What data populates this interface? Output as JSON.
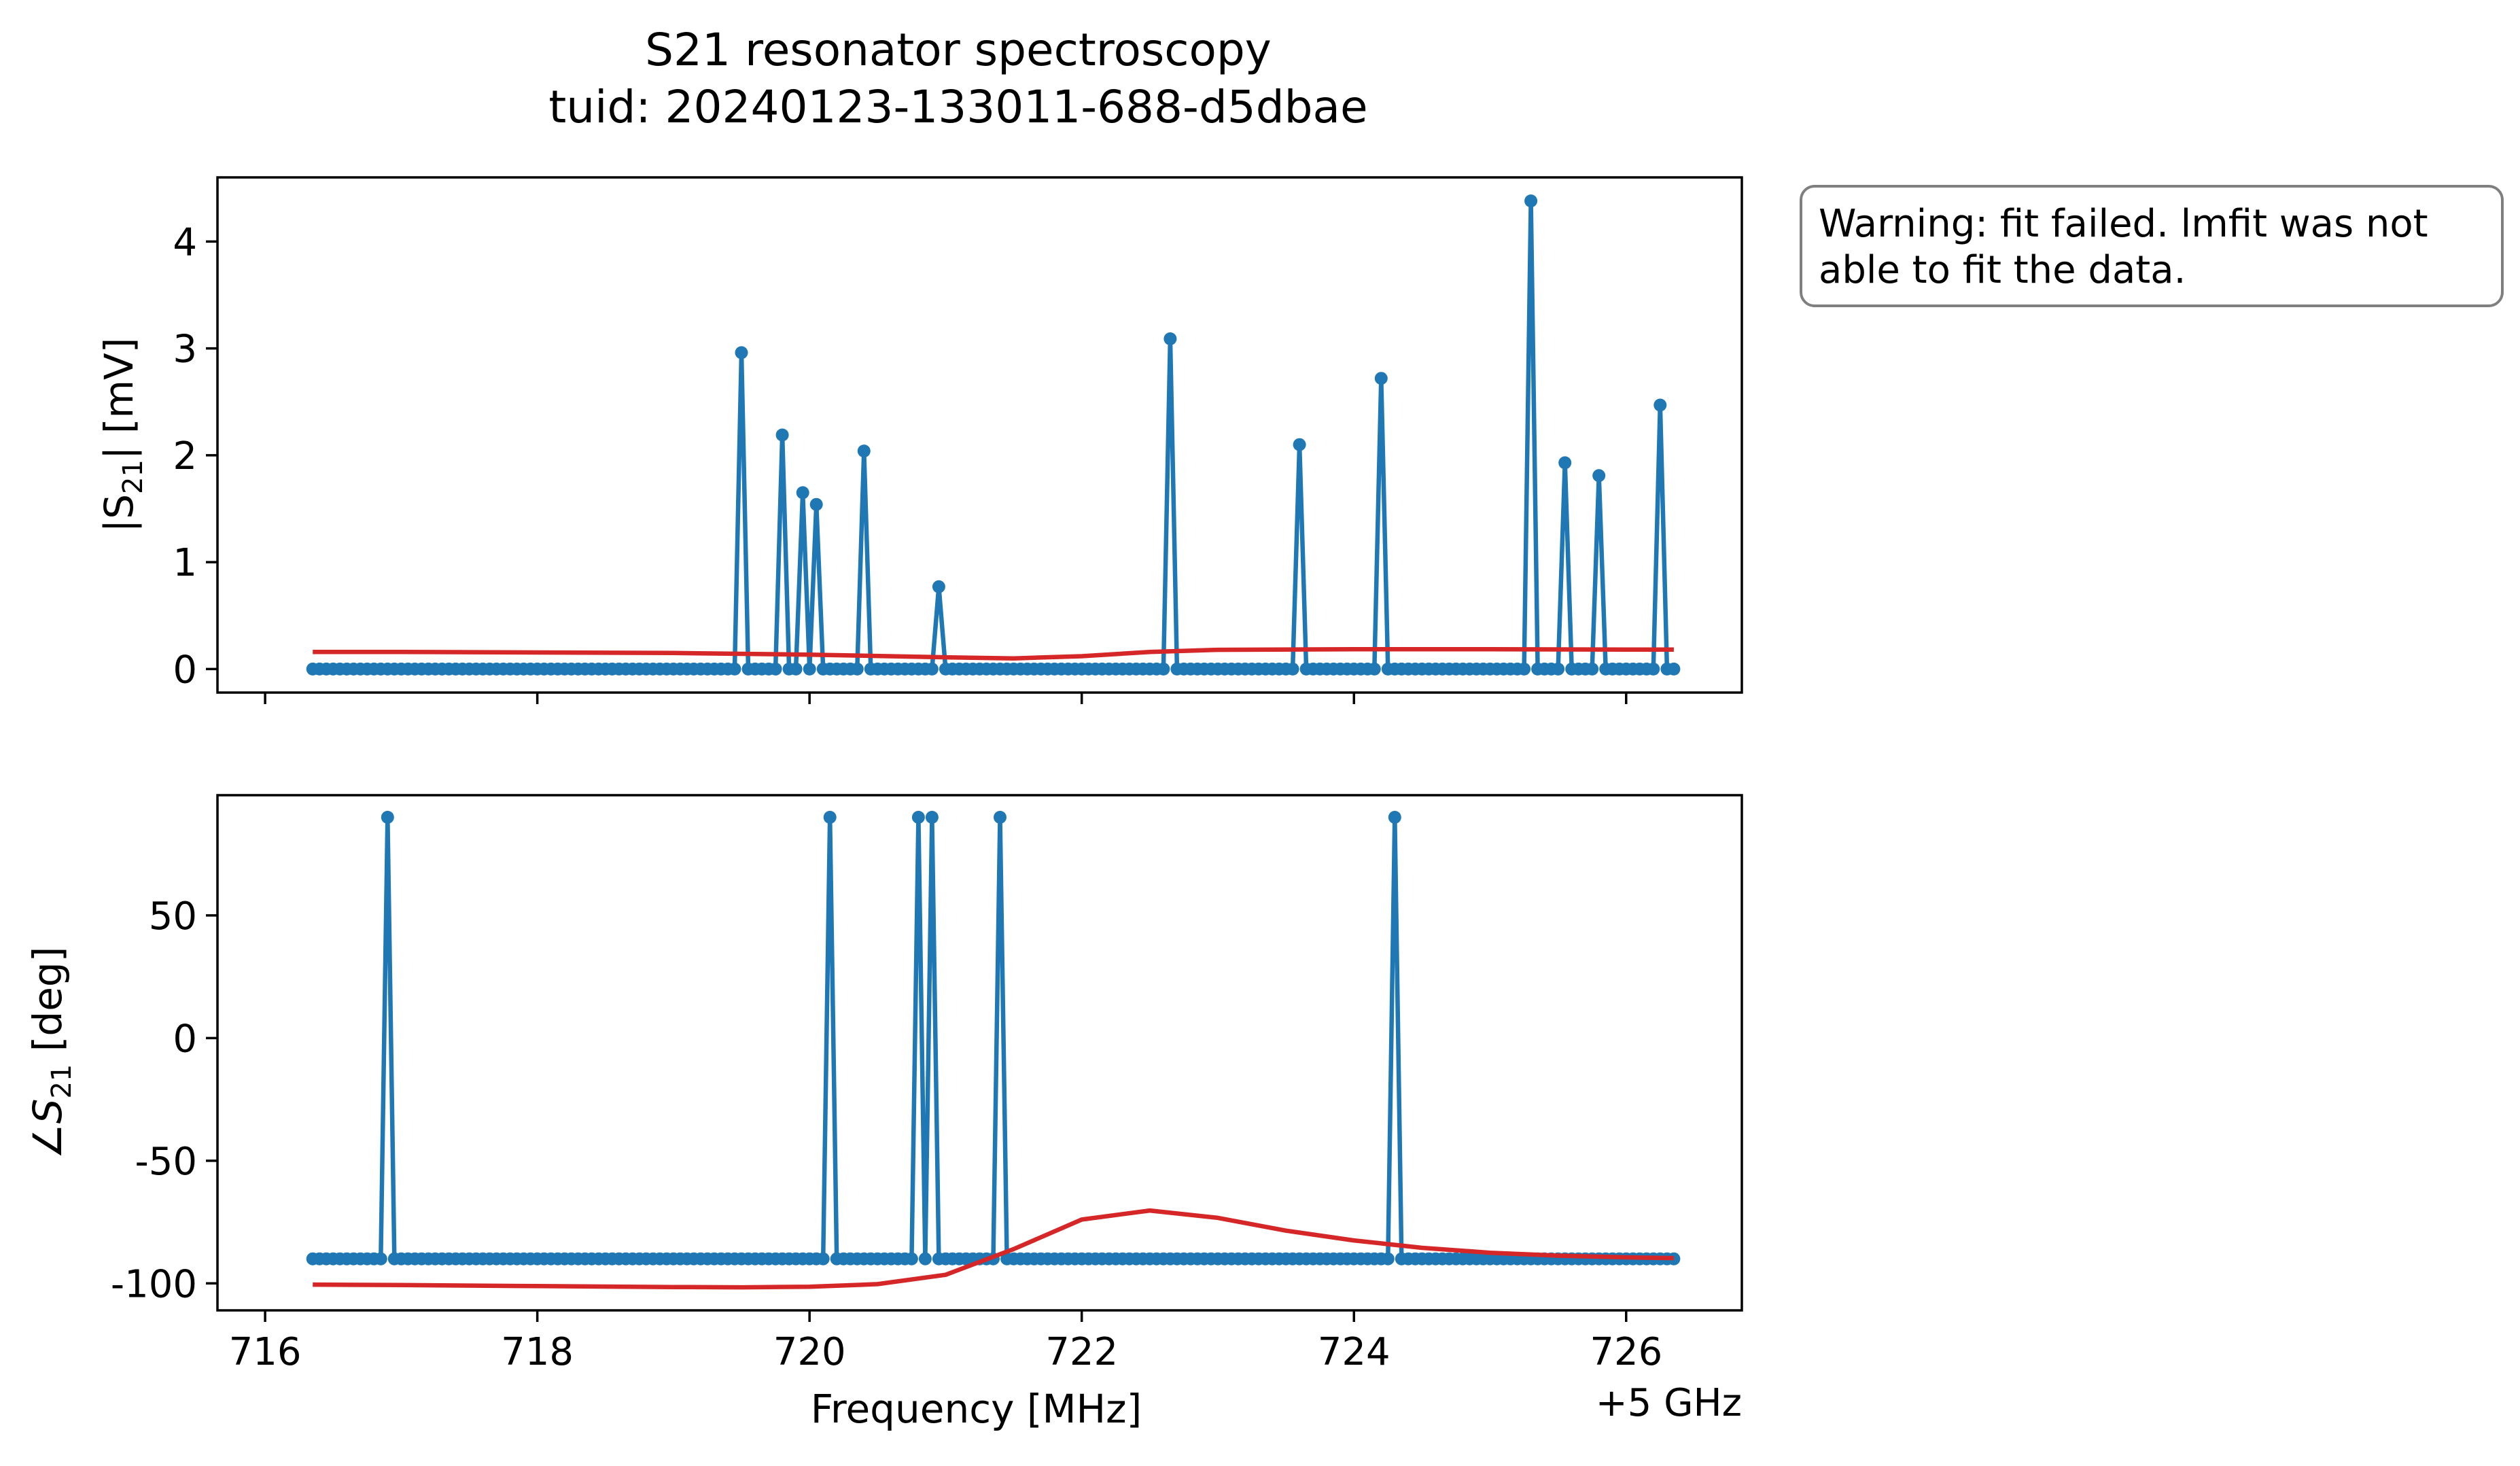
{
  "title": "S21 resonator spectroscopy",
  "subtitle": "tuid: 20240123-133011-688-d5dbae",
  "warning_text": "Warning: fit failed. lmfit was not\nable to fit the data.",
  "colors": {
    "data": "#1f77b4",
    "fit": "#d62728",
    "axes": "#000000",
    "box_edge": "#7f7f7f"
  },
  "chart_data": [
    {
      "type": "line",
      "panel": "top",
      "ylabel_main": "|S",
      "ylabel_sub": "21",
      "ylabel_tail": "| [mV]",
      "xlim": [
        716.15,
        726.85
      ],
      "ylim": [
        -0.22,
        4.6
      ],
      "xticks": [
        716,
        718,
        720,
        722,
        724,
        726
      ],
      "yticks": [
        0,
        1,
        2,
        3,
        4
      ],
      "ytick_labels": [
        "0",
        "1",
        "2",
        "3",
        "4"
      ],
      "grid": false,
      "series": [
        {
          "kind": "data",
          "x_range": [
            716.35,
            726.35
          ],
          "n_points": 201,
          "baseline": 0,
          "peaks": [
            [
              719.5,
              2.96
            ],
            [
              719.8,
              2.19
            ],
            [
              719.95,
              1.65
            ],
            [
              720.05,
              1.54
            ],
            [
              720.4,
              2.04
            ],
            [
              720.95,
              0.77
            ],
            [
              722.65,
              3.09
            ],
            [
              723.6,
              2.1
            ],
            [
              724.2,
              2.72
            ],
            [
              725.3,
              4.38
            ],
            [
              725.55,
              1.93
            ],
            [
              725.8,
              1.81
            ],
            [
              726.25,
              2.47
            ]
          ]
        },
        {
          "kind": "fit",
          "x": [
            716.35,
            717,
            718,
            719,
            720,
            721,
            721.5,
            722,
            722.5,
            723,
            724,
            725,
            726,
            726.35
          ],
          "y": [
            0.16,
            0.16,
            0.155,
            0.15,
            0.135,
            0.11,
            0.1,
            0.12,
            0.16,
            0.18,
            0.185,
            0.185,
            0.182,
            0.182
          ]
        }
      ]
    },
    {
      "type": "line",
      "panel": "bottom",
      "ylabel_main": "∠S",
      "ylabel_sub": "21",
      "ylabel_tail": " [deg]",
      "xlabel": "Frequency [MHz]",
      "offset_label": "+5 GHz",
      "xlim": [
        715.65,
        726.85
      ],
      "ylim": [
        -111,
        99
      ],
      "xticks": [
        716,
        718,
        720,
        722,
        724,
        726
      ],
      "xtick_labels": [
        "716",
        "718",
        "720",
        "722",
        "724",
        "726"
      ],
      "yticks": [
        50,
        0,
        -50,
        -100
      ],
      "ytick_labels": [
        "50",
        "0",
        "-50",
        "-100"
      ],
      "grid": false,
      "series": [
        {
          "kind": "data",
          "x_range": [
            716.35,
            726.35
          ],
          "n_points": 201,
          "baseline": -90,
          "peaks": [
            [
              716.9,
              90
            ],
            [
              720.15,
              90
            ],
            [
              720.8,
              90
            ],
            [
              720.9,
              90
            ],
            [
              721.4,
              90
            ],
            [
              724.3,
              90
            ]
          ]
        },
        {
          "kind": "fit",
          "x": [
            716.35,
            717,
            718,
            719,
            719.5,
            720,
            720.5,
            721,
            721.5,
            722,
            722.5,
            723,
            723.5,
            724,
            724.5,
            725,
            725.5,
            726,
            726.35
          ],
          "y": [
            -100.5,
            -100.7,
            -101.1,
            -101.5,
            -101.6,
            -101.4,
            -100.3,
            -96.5,
            -86,
            -74,
            -70.3,
            -73.3,
            -78.5,
            -82.5,
            -85.5,
            -87.5,
            -88.7,
            -89.4,
            -89.7
          ]
        }
      ]
    }
  ]
}
